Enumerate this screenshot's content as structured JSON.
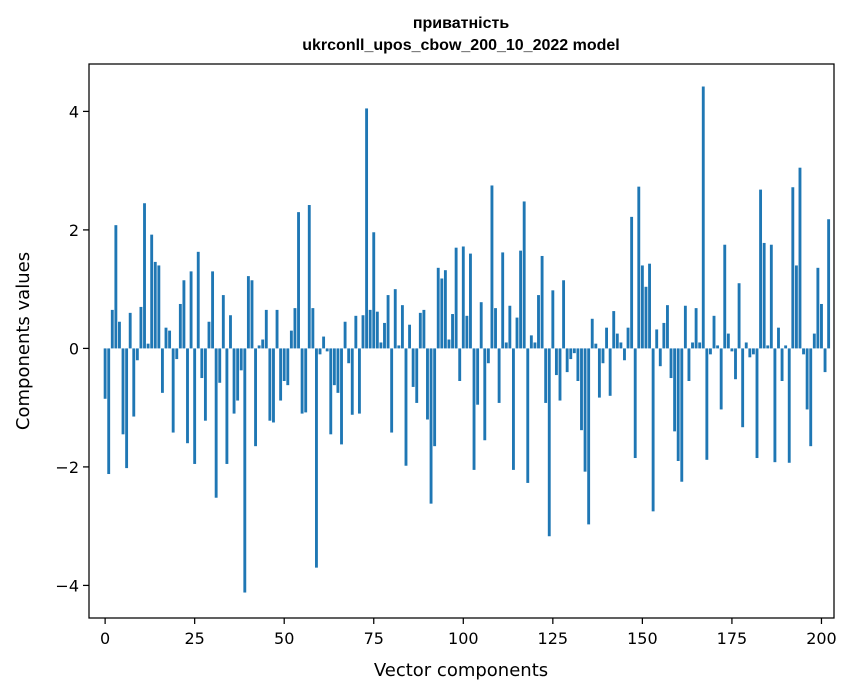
{
  "chart_data": {
    "type": "bar",
    "title_line1": "приватність",
    "title_line2": "ukrconll_upos_cbow_200_10_2022 model",
    "xlabel": "Vector components",
    "ylabel": "Components values",
    "xlim": [
      -4.5,
      203.5
    ],
    "ylim": [
      -4.55,
      4.8
    ],
    "xticks": [
      0,
      25,
      50,
      75,
      100,
      125,
      150,
      175,
      200
    ],
    "xtick_labels": [
      "0",
      "25",
      "50",
      "75",
      "100",
      "125",
      "150",
      "175",
      "200"
    ],
    "yticks": [
      -4,
      -2,
      0,
      2,
      4
    ],
    "ytick_labels": [
      "−4",
      "−2",
      "0",
      "2",
      "4"
    ],
    "bar_color": "#1f77b4",
    "values": [
      -0.85,
      -2.12,
      0.65,
      2.08,
      0.45,
      -1.45,
      -2.02,
      0.6,
      -1.15,
      -0.2,
      0.7,
      2.45,
      0.08,
      1.92,
      1.46,
      1.4,
      -0.75,
      0.35,
      0.3,
      -1.42,
      -0.18,
      0.75,
      1.15,
      -1.6,
      1.3,
      -1.95,
      1.63,
      -0.5,
      -1.22,
      0.45,
      1.3,
      -2.52,
      -0.58,
      0.9,
      -1.95,
      0.56,
      -1.1,
      -0.88,
      -0.37,
      -4.12,
      1.22,
      1.15,
      -1.65,
      0.05,
      0.15,
      0.65,
      -1.22,
      -1.25,
      0.65,
      -0.88,
      -0.55,
      -0.62,
      0.3,
      0.68,
      2.3,
      -1.1,
      -1.08,
      2.42,
      0.68,
      -3.7,
      -0.1,
      0.2,
      -0.05,
      -1.45,
      -0.62,
      -0.75,
      -1.62,
      0.45,
      -0.25,
      -1.12,
      0.55,
      -1.1,
      0.56,
      4.05,
      0.65,
      1.96,
      0.62,
      0.1,
      0.43,
      0.9,
      -1.42,
      1.0,
      0.05,
      0.73,
      -1.98,
      0.4,
      -0.65,
      -0.92,
      0.6,
      0.65,
      -1.2,
      -2.62,
      -1.65,
      1.36,
      1.18,
      1.32,
      0.15,
      0.58,
      1.7,
      -0.55,
      1.72,
      0.55,
      1.6,
      -2.05,
      -0.95,
      0.78,
      -1.55,
      -0.25,
      2.75,
      0.68,
      -0.92,
      1.62,
      0.1,
      0.72,
      -2.05,
      0.52,
      1.65,
      2.48,
      -2.27,
      0.22,
      0.1,
      0.9,
      1.56,
      -0.92,
      -3.17,
      0.98,
      -0.45,
      -0.88,
      1.15,
      -0.4,
      -0.18,
      -0.08,
      -0.55,
      -1.38,
      -2.08,
      -2.97,
      0.5,
      0.08,
      -0.83,
      -0.25,
      0.35,
      -0.8,
      0.63,
      0.25,
      0.1,
      -0.2,
      0.35,
      2.22,
      -1.85,
      2.73,
      1.4,
      1.04,
      1.43,
      -2.75,
      0.32,
      -0.3,
      0.43,
      0.73,
      -0.5,
      -1.4,
      -1.9,
      -2.25,
      0.72,
      -0.55,
      0.1,
      0.68,
      0.1,
      4.42,
      -1.88,
      -0.1,
      0.55,
      0.05,
      -1.03,
      1.75,
      0.25,
      -0.05,
      -0.52,
      1.1,
      -1.33,
      0.1,
      -0.15,
      -0.1,
      -1.85,
      2.68,
      1.78,
      0.05,
      1.75,
      -1.92,
      0.35,
      -0.55,
      0.05,
      -1.93,
      2.72,
      1.4,
      3.05,
      -0.1,
      -1.03,
      -1.65,
      0.25,
      1.36,
      0.75,
      -0.4,
      2.18
    ]
  }
}
